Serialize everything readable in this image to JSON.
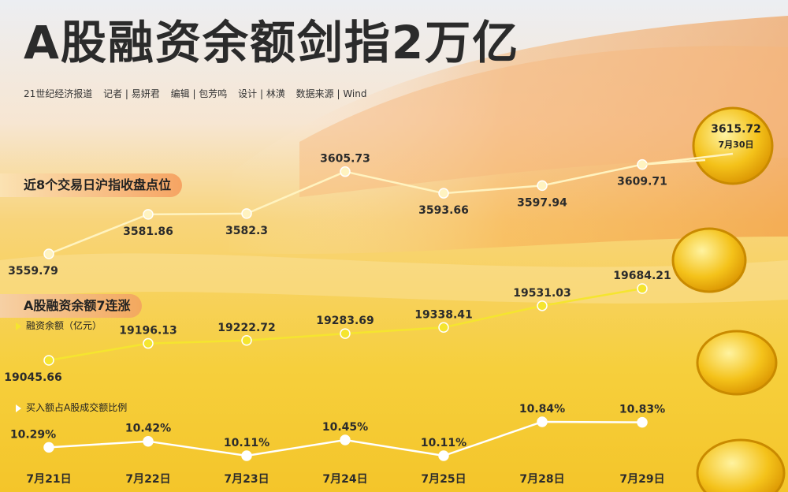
{
  "title": "A股融资余额剑指2万亿",
  "credits": [
    "21世纪经济报道",
    "记者 | 易妍君",
    "编辑 | 包芳鸣",
    "设计 | 林潢",
    "数据来源 | Wind"
  ],
  "sections": {
    "close_label": "近8个交易日沪指收盘点位",
    "margin_label": "A股融资余额7连涨"
  },
  "legend": {
    "margin_balance": "融资余额（亿元）",
    "buy_ratio": "买入额占A股成交额比例"
  },
  "highlight": {
    "value": "3615.72",
    "date": "7月30日"
  },
  "colors": {
    "index_line": "#fff3c0",
    "margin_line": "#f5e52f",
    "ratio_line": "#ffffff",
    "coin": "#f2b705"
  },
  "chart_data": [
    {
      "type": "line",
      "name": "沪指收盘点位",
      "x": [
        "7月21日",
        "7月22日",
        "7月23日",
        "7月24日",
        "7月25日",
        "7月28日",
        "7月29日",
        "7月30日"
      ],
      "values": [
        3559.79,
        3581.86,
        3582.3,
        3605.73,
        3593.66,
        3597.94,
        3609.71,
        3615.72
      ],
      "labels": [
        "3559.79",
        "3581.86",
        "3582.3",
        "3605.73",
        "3593.66",
        "3597.94",
        "3609.71",
        "3615.72"
      ]
    },
    {
      "type": "line",
      "name": "融资余额（亿元）",
      "x": [
        "7月21日",
        "7月22日",
        "7月23日",
        "7月24日",
        "7月25日",
        "7月28日",
        "7月29日"
      ],
      "values": [
        19045.66,
        19196.13,
        19222.72,
        19283.69,
        19338.41,
        19531.03,
        19684.21
      ],
      "labels": [
        "19045.66",
        "19196.13",
        "19222.72",
        "19283.69",
        "19338.41",
        "19531.03",
        "19684.21"
      ]
    },
    {
      "type": "line",
      "name": "买入额占A股成交额比例",
      "x": [
        "7月21日",
        "7月22日",
        "7月23日",
        "7月24日",
        "7月25日",
        "7月28日",
        "7月29日"
      ],
      "values": [
        10.29,
        10.42,
        10.11,
        10.45,
        10.11,
        10.84,
        10.83
      ],
      "labels": [
        "10.29%",
        "10.42%",
        "10.11%",
        "10.45%",
        "10.11%",
        "10.84%",
        "10.83%"
      ]
    }
  ]
}
